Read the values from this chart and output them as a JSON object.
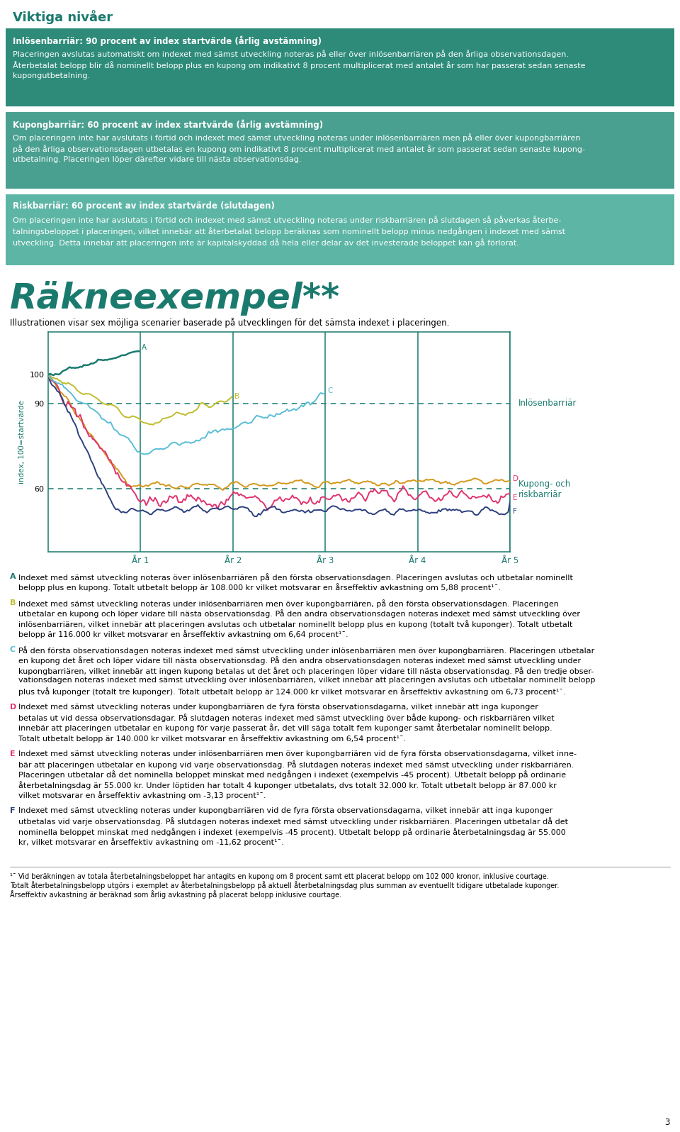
{
  "title_viktiga": "Viktiga nivåer",
  "box1_title": "Inlösenbarriär: 90 procent av index startvärde (årlig avstämning)",
  "box1_lines": [
    "Placeringen avslutas automatiskt om indexet med sämst utveckling noteras på eller över inlösenbarriären på den årliga observationsdagen.",
    "Återbetalat belopp blir då nominellt belopp plus en kupong om indikativt 8 procent multiplicerat med antalet år som har passerat sedan senaste",
    "kupongutbetalning."
  ],
  "box2_title": "Kupongbarriär: 60 procent av index startvärde (årlig avstämning)",
  "box2_lines": [
    "Om placeringen inte har avslutats i förtid och indexet med sämst utveckling noteras under inlösenbarriären men på eller över kupongbarriären",
    "på den årliga observationsdagen utbetalas en kupong om indikativt 8 procent multiplicerat med antalet år som passerat sedan senaste kupong-",
    "utbetalning. Placeringen löper därefter vidare till nästa observationsdag."
  ],
  "box3_title": "Riskbarriär: 60 procent av index startvärde (slutdagen)",
  "box3_lines": [
    "Om placeringen inte har avslutats i förtid och indexet med sämst utveckling noteras under riskbarriären på slutdagen så påverkas återbe-",
    "talningsbeloppet i placeringen, vilket innebär att återbetalat belopp beräknas som nominellt belopp minus nedgången i indexet med sämst",
    "utveckling. Detta innebär att placeringen inte är kapitalskyddad då hela eller delar av det investerade beloppet kan gå förlorat."
  ],
  "rakne_title": "Räkneexempel**",
  "rakne_subtitle": "Illustrationen visar sex möjliga scenarier baserade på utvecklingen för det sämsta indexet i placeringen.",
  "chart_ylabel": "index, 100=startvärde",
  "inlosen_label": "Inlösenbarriär",
  "kupong_label": "Kupong- och\nriskbarriär",
  "year_labels": [
    "År 1",
    "År 2",
    "År 3",
    "År 4",
    "År 5"
  ],
  "color_dark_teal": "#1a7a6e",
  "color_teal_box1": "#2e8b7a",
  "color_teal_box2": "#4aa090",
  "color_teal_box3": "#5db5a5",
  "color_yellow_green": "#bfbd2e",
  "color_light_blue": "#5abdd6",
  "color_pink": "#e0336e",
  "color_dark_navy": "#2b3f7e",
  "color_gold": "#d4981a",
  "fn_A_lines": [
    "A  Indexet med sämst utveckling noteras över inlösenbarriären på den första observationsdagen. Placeringen avslutas och utbetalar nominellt",
    "   belopp plus en kupong. Totalt utbetalt belopp är 108.000 kr vilket motsvarar en årseffektiv avkastning om 5,88 procent¹ˉ."
  ],
  "fn_B_lines": [
    "B  Indexet med sämst utveckling noteras under inlösenbarriären men över kupongbarriären, på den första observationsdagen. Placeringen",
    "   utbetalar en kupong och löper vidare till nästa observationsdag. På den andra observationsdagen noteras indexet med sämst utveckling över",
    "   inlösenbarriären, vilket innebär att placeringen avslutas och utbetalar nominellt belopp plus en kupong (totalt två kuponger). Totalt utbetalt",
    "   belopp är 116.000 kr vilket motsvarar en årseffektiv avkastning om 6,64 procent¹ˉ."
  ],
  "fn_C_lines": [
    "C  På den första observationsdagen noteras indexet med sämst utveckling under inlösenbarriären men över kupongbarriären. Placeringen utbetalar",
    "   en kupong det året och löper vidare till nästa observationsdag. På den andra observationsdagen noteras indexet med sämst utveckling under",
    "   kupongbarriären, vilket innebär att ingen kupong betalas ut det året och placeringen löper vidare till nästa observationsdag. På den tredje obser-",
    "   vationsdagen noteras indexet med sämst utveckling över inlösenbarriären, vilket innebär att placeringen avslutas och utbetalar nominellt belopp",
    "   plus två kuponger (totalt tre kuponger). Totalt utbetalt belopp är 124.000 kr vilket motsvarar en årseffektiv avkastning om 6,73 procent¹ˉ."
  ],
  "fn_D_lines": [
    "D  Indexet med sämst utveckling noteras under kupongbarriären de fyra första observationsdagarna, vilket innebär att inga kuponger",
    "   betalas ut vid dessa observationsdagar. På slutdagen noteras indexet med sämst utveckling över både kupong- och riskbarriären vilket",
    "   innebär att placeringen utbetalar en kupong för varje passerat år, det vill säga totalt fem kuponger samt återbetalar nominellt belopp.",
    "   Totalt utbetalt belopp är 140.000 kr vilket motsvarar en årseffektiv avkastning om 6,54 procent¹ˉ."
  ],
  "fn_E_lines": [
    "E  Indexet med sämst utveckling noteras under inlösenbarriären men över kupongbarriären vid de fyra första observationsdagarna, vilket inne-",
    "   bär att placeringen utbetalar en kupong vid varje observationsdag. På slutdagen noteras indexet med sämst utveckling under riskbarriären.",
    "   Placeringen utbetalar då det nominella beloppet minskat med nedgången i indexet (exempelvis -45 procent). Utbetalt belopp på ordinarie",
    "   återbetalningsdag är 55.000 kr. Under löptiden har totalt 4 kuponger utbetalats, dvs totalt 32.000 kr. Totalt utbetalt belopp är 87.000 kr",
    "   vilket motsvarar en årseffektiv avkastning om -3,13 procent¹ˉ."
  ],
  "fn_F_lines": [
    "F  Indexet med sämst utveckling noteras under kupongbarriären vid de fyra första observationsdagarna, vilket innebär att inga kuponger",
    "   utbetalas vid varje observationsdag. På slutdagen noteras indexet med sämst utveckling under riskbarriären. Placeringen utbetalar då det",
    "   nominella beloppet minskat med nedgången i indexet (exempelvis -45 procent). Utbetalt belopp på ordinarie återbetalningsdag är 55.000",
    "   kr, vilket motsvarar en årseffektiv avkastning om -11,62 procent¹ˉ."
  ],
  "fn_bottom1": "¹ˉ Vid beräkningen av totala återbetalningsbeloppet har antagits en kupong om 8 procent samt ett placerat belopp om 102 000 kronor, inklusive courtage.",
  "fn_bottom2": "Totalt återbetalningsbelopp utgörs i exemplet av återbetalningsbelopp på aktuell återbetalningsdag plus summan av eventuellt tidigare utbetalade kuponger.",
  "fn_bottom3": "Årseffektiv avkastning är beräknad som årlig avkastning på placerat belopp inklusive courtage.",
  "page_number": "3"
}
